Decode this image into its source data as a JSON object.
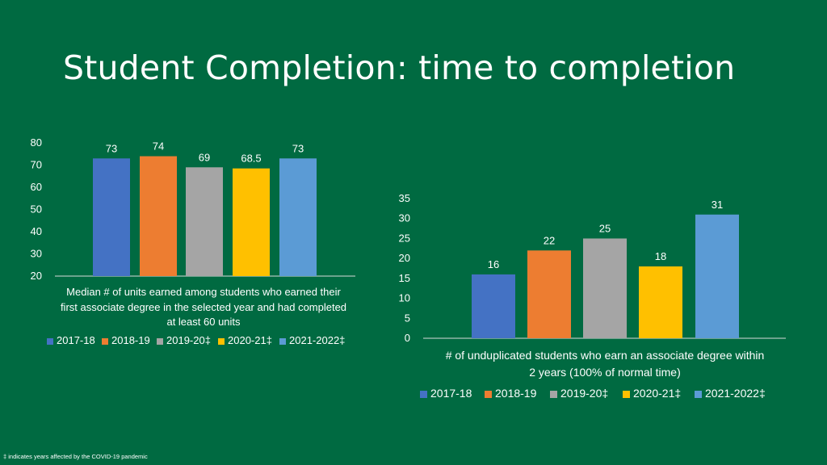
{
  "title": "Student Completion: time to completion",
  "footnote": "‡ indicates years affected by the COVID-19 pandemic",
  "colors": {
    "background": "#006a41",
    "2017-18": "#4472c4",
    "2018-19": "#ed7d31",
    "2019-20‡": "#a5a5a5",
    "2020-21‡": "#ffc000",
    "2021-2022‡": "#5b9bd5"
  },
  "chart_data": [
    {
      "type": "bar",
      "categories": [
        "2017-18",
        "2018-19",
        "2019-20‡",
        "2020-21‡",
        "2021-2022‡"
      ],
      "values": [
        73,
        74,
        69,
        68.5,
        73
      ],
      "value_labels": [
        "73",
        "74",
        "69",
        "68.5",
        "73"
      ],
      "ylim": [
        20,
        80
      ],
      "yticks": [
        "20",
        "30",
        "40",
        "50",
        "60",
        "70",
        "80"
      ],
      "caption_lines": [
        "Median # of units earned among students who earned their",
        "first associate degree in the selected year and had completed",
        "at least 60 units"
      ],
      "legend": [
        "2017-18",
        "2018-19",
        "2019-20‡",
        "2020-21‡",
        "2021-2022‡"
      ],
      "legend_position": "bottom",
      "grid": false
    },
    {
      "type": "bar",
      "categories": [
        "2017-18",
        "2018-19",
        "2019-20‡",
        "2020-21‡",
        "2021-2022‡"
      ],
      "values": [
        16,
        22,
        25,
        18,
        31
      ],
      "value_labels": [
        "16",
        "22",
        "25",
        "18",
        "31"
      ],
      "ylim": [
        0,
        35
      ],
      "yticks": [
        "0",
        "5",
        "10",
        "15",
        "20",
        "25",
        "30",
        "35"
      ],
      "caption_lines": [
        "# of unduplicated students who earn an associate degree within",
        "2 years (100% of normal time)"
      ],
      "legend": [
        "2017-18",
        "2018-19",
        "2019-20‡",
        "2020-21‡",
        "2021-2022‡"
      ],
      "legend_position": "bottom",
      "grid": false
    }
  ]
}
